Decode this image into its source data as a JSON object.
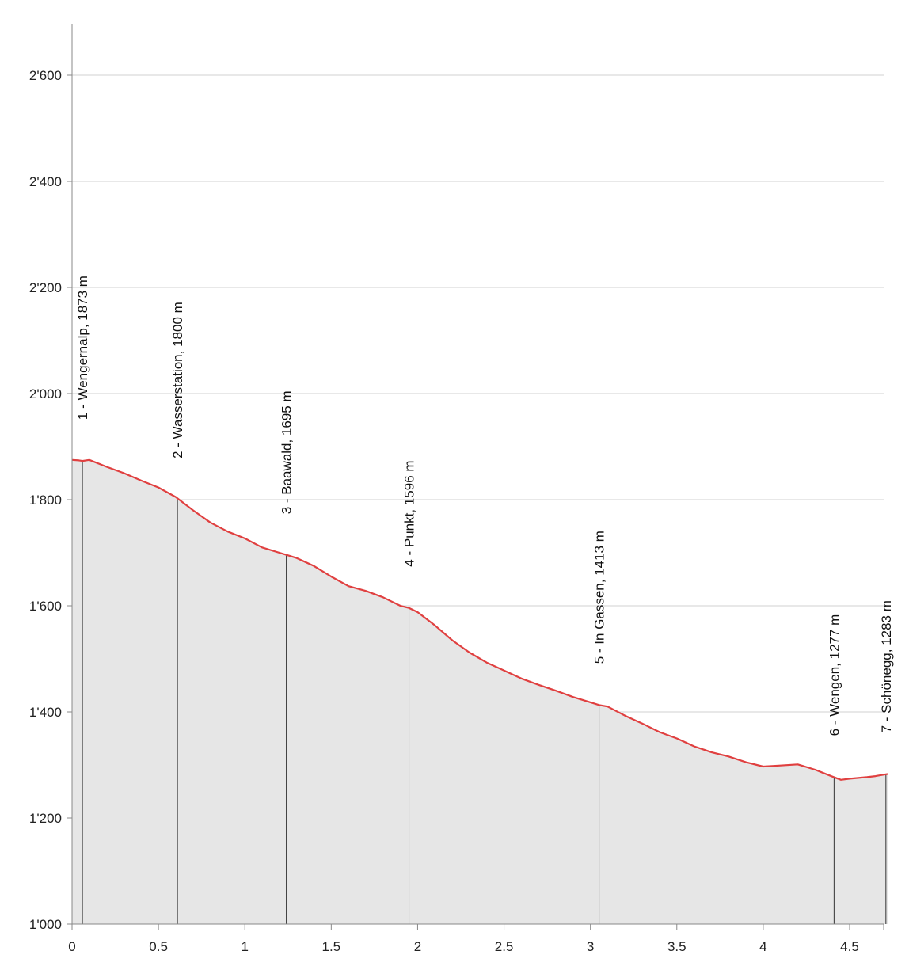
{
  "chart_data": {
    "type": "area",
    "title": "",
    "xlabel": "",
    "ylabel": "",
    "xlim": [
      0,
      4.75
    ],
    "ylim": [
      1000,
      2750
    ],
    "x_ticks": [
      0,
      0.5,
      1,
      1.5,
      2,
      2.5,
      3,
      3.5,
      4,
      4.5
    ],
    "x_tick_labels": [
      "0",
      "0.5",
      "1",
      "1.5",
      "2",
      "2.5",
      "3",
      "3.5",
      "4",
      "4.5"
    ],
    "y_ticks": [
      1000,
      1200,
      1400,
      1600,
      1800,
      2000,
      2200,
      2400,
      2600
    ],
    "y_tick_labels": [
      "1'000",
      "1'200",
      "1'400",
      "1'600",
      "1'800",
      "2'000",
      "2'200",
      "2'400",
      "2'600"
    ],
    "grid": "horizontal",
    "line_color": "#e04040",
    "fill_color": "#e6e6e6",
    "grid_color": "#d0d0d0",
    "profile": {
      "x": [
        0,
        0.04,
        0.06,
        0.1,
        0.2,
        0.3,
        0.4,
        0.5,
        0.6,
        0.7,
        0.8,
        0.9,
        1.0,
        1.1,
        1.2,
        1.25,
        1.3,
        1.4,
        1.5,
        1.6,
        1.7,
        1.8,
        1.9,
        1.95,
        2.0,
        2.1,
        2.2,
        2.3,
        2.4,
        2.5,
        2.6,
        2.7,
        2.8,
        2.9,
        3.0,
        3.05,
        3.1,
        3.2,
        3.3,
        3.4,
        3.5,
        3.6,
        3.7,
        3.8,
        3.9,
        4.0,
        4.1,
        4.2,
        4.3,
        4.4,
        4.45,
        4.5,
        4.6,
        4.65,
        4.72
      ],
      "y": [
        1875,
        1874,
        1873,
        1875,
        1862,
        1850,
        1836,
        1823,
        1805,
        1780,
        1757,
        1740,
        1727,
        1710,
        1700,
        1695,
        1690,
        1675,
        1655,
        1637,
        1628,
        1616,
        1600,
        1596,
        1588,
        1563,
        1535,
        1512,
        1493,
        1478,
        1463,
        1451,
        1440,
        1428,
        1418,
        1413,
        1410,
        1393,
        1378,
        1362,
        1350,
        1335,
        1324,
        1316,
        1305,
        1297,
        1299,
        1301,
        1291,
        1278,
        1272,
        1274,
        1277,
        1279,
        1283
      ]
    },
    "waypoints": [
      {
        "x": 0.06,
        "y": 1873,
        "label": "1 - Wengernalp, 1873 m"
      },
      {
        "x": 0.61,
        "y": 1800,
        "label": "2 - Wasserstation, 1800 m"
      },
      {
        "x": 1.24,
        "y": 1695,
        "label": "3 - Baawald, 1695 m"
      },
      {
        "x": 1.95,
        "y": 1596,
        "label": "4 - Punkt, 1596 m"
      },
      {
        "x": 3.05,
        "y": 1413,
        "label": "5 - In Gassen, 1413 m"
      },
      {
        "x": 4.41,
        "y": 1277,
        "label": "6 - Wengen, 1277 m"
      },
      {
        "x": 4.71,
        "y": 1283,
        "label": "7 - Schönegg, 1283 m"
      }
    ]
  }
}
